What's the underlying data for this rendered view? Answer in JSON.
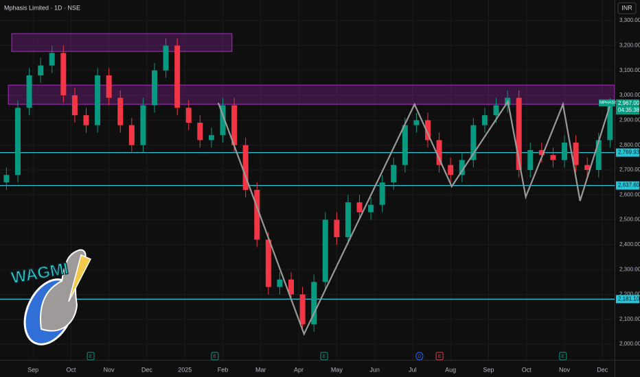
{
  "chart_data": {
    "type": "candlestick",
    "title": "Mphasis Limited · 1D · NSE",
    "currency": "INR",
    "symbol": "MPHASIS",
    "countdown": "04:35:38",
    "last_price": {
      "value": 2967,
      "label": "2,967.00"
    },
    "up_color": "#089981",
    "down_color": "#f23645",
    "grid": true,
    "xlim": [
      0.13,
      16.32
    ],
    "ylim": [
      1937,
      3383
    ],
    "xticks": [
      {
        "value": 1,
        "label": "Sep"
      },
      {
        "value": 2,
        "label": "Oct"
      },
      {
        "value": 3,
        "label": "Nov"
      },
      {
        "value": 4,
        "label": "Dec"
      },
      {
        "value": 5,
        "label": "2025"
      },
      {
        "value": 6,
        "label": "Feb"
      },
      {
        "value": 7,
        "label": "Mar"
      },
      {
        "value": 8,
        "label": "Apr"
      },
      {
        "value": 9,
        "label": "May"
      },
      {
        "value": 10,
        "label": "Jun"
      },
      {
        "value": 11,
        "label": "Jul"
      },
      {
        "value": 12,
        "label": "Aug"
      },
      {
        "value": 13,
        "label": "Sep"
      },
      {
        "value": 14,
        "label": "Oct"
      },
      {
        "value": 15,
        "label": "Nov"
      },
      {
        "value": 16,
        "label": "Dec"
      }
    ],
    "yticks": [
      {
        "value": 2000,
        "label": "2,000.00"
      },
      {
        "value": 2100,
        "label": "2,100.00"
      },
      {
        "value": 2200,
        "label": "2,200.00"
      },
      {
        "value": 2300,
        "label": "2,300.00"
      },
      {
        "value": 2400,
        "label": "2,400.00"
      },
      {
        "value": 2500,
        "label": "2,500.00"
      },
      {
        "value": 2600,
        "label": "2,600.00"
      },
      {
        "value": 2700,
        "label": "2,700.00"
      },
      {
        "value": 2800,
        "label": "2,800.00"
      },
      {
        "value": 2900,
        "label": "2,900.00"
      },
      {
        "value": 3000,
        "label": "3,000.00"
      },
      {
        "value": 3100,
        "label": "3,100.00"
      },
      {
        "value": 3200,
        "label": "3,200.00"
      },
      {
        "value": 3300,
        "label": "3,300.00"
      }
    ],
    "x": [
      0.3,
      0.6,
      0.9,
      1.2,
      1.5,
      1.8,
      2.1,
      2.4,
      2.7,
      3.0,
      3.3,
      3.6,
      3.9,
      4.2,
      4.5,
      4.8,
      5.1,
      5.4,
      5.7,
      6.0,
      6.3,
      6.6,
      6.9,
      7.2,
      7.5,
      7.8,
      8.1,
      8.4,
      8.7,
      9.0,
      9.3,
      9.6,
      9.9,
      10.2,
      10.5,
      10.8,
      11.1,
      11.4,
      11.7,
      12.0,
      12.3,
      12.6,
      12.9,
      13.2,
      13.5,
      13.8,
      14.1,
      14.4,
      14.7,
      15.0,
      15.3,
      15.6,
      15.9,
      16.2
    ],
    "open": [
      2650,
      2680,
      2950,
      3080,
      3120,
      3170,
      3000,
      2920,
      2880,
      3080,
      2990,
      2880,
      2800,
      2960,
      3100,
      3200,
      2950,
      2890,
      2820,
      2840,
      2960,
      2800,
      2620,
      2420,
      2230,
      2260,
      2200,
      2080,
      2250,
      2500,
      2430,
      2570,
      2530,
      2560,
      2650,
      2720,
      2880,
      2900,
      2820,
      2720,
      2680,
      2740,
      2880,
      2920,
      2960,
      2990,
      2700,
      2780,
      2760,
      2740,
      2810,
      2720,
      2700,
      2820
    ],
    "high": [
      2710,
      2980,
      3110,
      3150,
      3200,
      3200,
      3030,
      2950,
      3110,
      3110,
      3020,
      2910,
      2990,
      3130,
      3230,
      3230,
      2980,
      2920,
      2870,
      2990,
      2990,
      2830,
      2650,
      2450,
      2290,
      2290,
      2230,
      2280,
      2530,
      2530,
      2600,
      2600,
      2590,
      2680,
      2750,
      2910,
      2930,
      2930,
      2850,
      2750,
      2770,
      2910,
      2950,
      2990,
      3020,
      3020,
      2810,
      2810,
      2790,
      2840,
      2840,
      2750,
      2850,
      2990
    ],
    "low": [
      2620,
      2650,
      2920,
      3050,
      3090,
      2970,
      2890,
      2850,
      2850,
      2960,
      2850,
      2770,
      2770,
      2930,
      3070,
      2920,
      2860,
      2790,
      2790,
      2810,
      2770,
      2590,
      2390,
      2200,
      2200,
      2170,
      2050,
      2050,
      2220,
      2400,
      2400,
      2500,
      2500,
      2530,
      2620,
      2690,
      2850,
      2790,
      2690,
      2650,
      2650,
      2710,
      2850,
      2890,
      2930,
      2670,
      2670,
      2730,
      2710,
      2710,
      2690,
      2670,
      2670,
      2790
    ],
    "close": [
      2680,
      2950,
      3080,
      3120,
      3170,
      3000,
      2920,
      2880,
      3080,
      2990,
      2880,
      2800,
      2960,
      3100,
      3200,
      2950,
      2890,
      2820,
      2840,
      2960,
      2800,
      2620,
      2420,
      2230,
      2260,
      2200,
      2080,
      2250,
      2500,
      2430,
      2570,
      2530,
      2560,
      2650,
      2720,
      2880,
      2900,
      2820,
      2720,
      2680,
      2740,
      2880,
      2920,
      2960,
      2990,
      2700,
      2780,
      2760,
      2740,
      2810,
      2720,
      2700,
      2820,
      2960
    ],
    "zigzag": {
      "color": "#9a9a9a",
      "x": [
        5.88,
        8.14,
        11.05,
        12.03,
        13.51,
        13.98,
        14.96,
        15.41,
        16.19
      ],
      "values": [
        2970,
        2041,
        2964,
        2634,
        2975,
        2592,
        2964,
        2576,
        2956
      ]
    },
    "levels": [
      {
        "value": 2769.93,
        "label": "2,769.93"
      },
      {
        "value": 2637.6,
        "label": "2,637.60"
      },
      {
        "value": 2181.1,
        "label": "2,181.10"
      }
    ],
    "level_color": "#26c6da",
    "zones": [
      {
        "x": [
          0.44,
          6.24
        ],
        "y": [
          3176,
          3248
        ]
      },
      {
        "x": [
          0.35,
          16.32
        ],
        "y": [
          2964,
          3041
        ]
      }
    ],
    "zone_color": "#9c27b0",
    "events": [
      {
        "x": 2.52,
        "label": "E",
        "color": "#089981"
      },
      {
        "x": 5.79,
        "label": "E",
        "color": "#089981"
      },
      {
        "x": 8.67,
        "label": "E",
        "color": "#089981"
      },
      {
        "x": 11.18,
        "label": "D",
        "color": "#2962ff"
      },
      {
        "x": 11.71,
        "label": "E",
        "color": "#f23645"
      },
      {
        "x": 14.96,
        "label": "E",
        "color": "#089981"
      }
    ],
    "badge": "WAGMI"
  }
}
